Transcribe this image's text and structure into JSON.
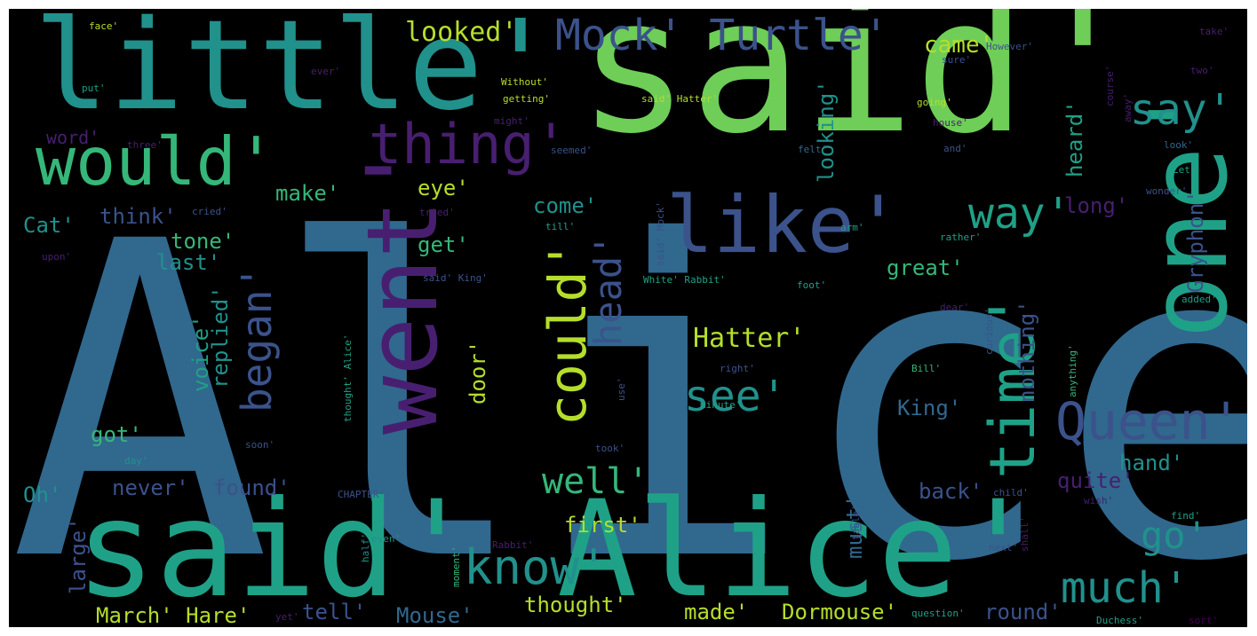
{
  "palette": {
    "background": "#000000",
    "dark_blue": "#3b528b",
    "steel_blue": "#31688e",
    "teal": "#21918c",
    "sea_green": "#1fa187",
    "green": "#35b779",
    "lime": "#6ece58",
    "yellow_green": "#b5de2b",
    "purple": "#481f70",
    "deep_purple": "#440154"
  },
  "words": [
    "Alice'",
    "said'",
    "said' Alice'",
    "little'",
    "one'",
    "went'",
    "would'",
    "thing'",
    "like'",
    "time'",
    "could'",
    "Queen'",
    "know'",
    "see'",
    "much'",
    "Mock' Turtle'",
    "way'",
    "say'",
    "began'",
    "head'",
    "go'",
    "well'",
    "Hatter'",
    "looked'",
    "came'",
    "looking'",
    "heard'",
    "Gryphon'",
    "long'",
    "make'",
    "think'",
    "Cat'",
    "come'",
    "eye'",
    "get'",
    "last'",
    "tone'",
    "great'",
    "voice'",
    "replied'",
    "King'",
    "nothing'",
    "got'",
    "hand'",
    "quite'",
    "door'",
    "Oh'",
    "never'",
    "found'",
    "back'",
    "first'",
    "large'",
    "must'",
    "March' Hare'",
    "tell'",
    "Mouse'",
    "thought'",
    "made'",
    "Dormouse'",
    "round'",
    "word'",
    "face'",
    "ever'",
    "put'",
    "Without'",
    "getting'",
    "said' Hatter'",
    "going'",
    "house'",
    "three'",
    "seemed'",
    "felt'",
    "and'",
    "look'",
    "Let'",
    "cried'",
    "tried'",
    "till'",
    "arm'",
    "upon'",
    "rather'",
    "said' King'",
    "White' Rabbit'",
    "foot'",
    "dear'",
    "added'",
    "Bill'",
    "right'",
    "minute'",
    "took'",
    "day'",
    "soon'",
    "CHAPTER'",
    "child'",
    "wish'",
    "find'",
    "next'",
    "half'",
    "even'",
    "Rabbit'",
    "table'",
    "shall'",
    "question'",
    "Duchess'",
    "sort'",
    "yet'",
    "might'",
    "sure'",
    "However'",
    "take'",
    "two'",
    "course'",
    "away'",
    "wonder'",
    "curious'",
    "anything'",
    "thought' Alice'",
    "use'",
    "said' Mock'",
    "moment'"
  ]
}
